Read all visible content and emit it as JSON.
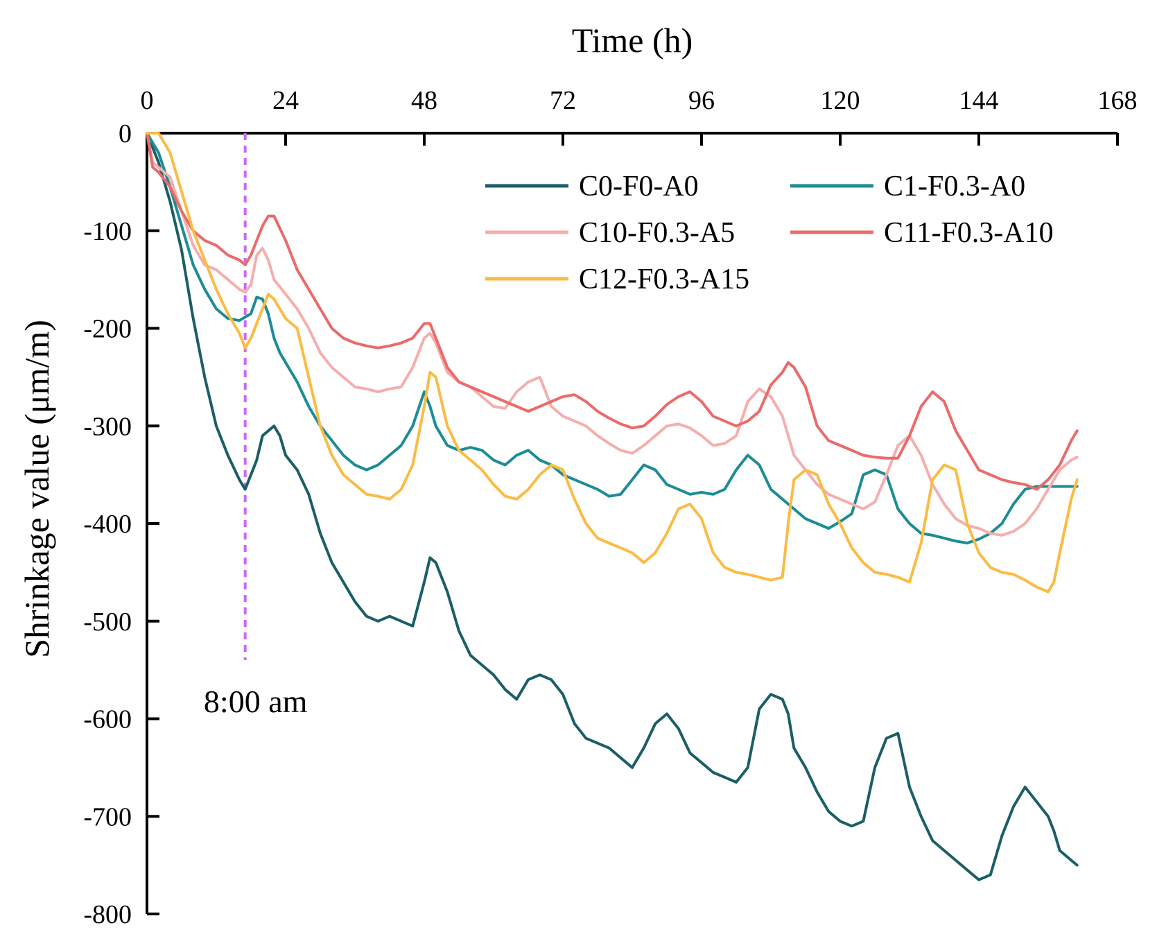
{
  "chart_data": {
    "type": "line",
    "title": "",
    "xlabel": "Time (h)",
    "ylabel": "Shrinkage value (μm/m)",
    "xlim": [
      0,
      168
    ],
    "ylim": [
      -800,
      0
    ],
    "xticks": [
      0,
      24,
      48,
      72,
      96,
      120,
      144,
      168
    ],
    "yticks": [
      0,
      -100,
      -200,
      -300,
      -400,
      -500,
      -600,
      -700,
      -800
    ],
    "xticklabels": [
      "0",
      "24",
      "48",
      "72",
      "96",
      "120",
      "144",
      "168"
    ],
    "yticklabels": [
      "0",
      "-100",
      "-200",
      "-300",
      "-400",
      "-500",
      "-600",
      "-700",
      "-800"
    ],
    "x_axis_position": "top",
    "legend_position": "top-right",
    "annotation": {
      "x": 17,
      "y_from": 0,
      "y_to": -540,
      "label": "8:00 am",
      "color": "#cc66ff"
    },
    "series": [
      {
        "name": "C0-F0-A0",
        "color": "#1b5e66",
        "x": [
          0,
          2,
          4,
          6,
          8,
          10,
          12,
          14,
          16,
          17,
          19,
          20,
          21,
          22,
          23,
          24,
          26,
          28,
          30,
          32,
          34,
          36,
          38,
          40,
          42,
          44,
          46,
          48,
          49,
          50,
          52,
          54,
          56,
          58,
          60,
          62,
          64,
          66,
          68,
          70,
          72,
          74,
          76,
          78,
          80,
          82,
          84,
          86,
          88,
          90,
          92,
          94,
          96,
          98,
          100,
          102,
          104,
          106,
          108,
          110,
          111,
          112,
          114,
          116,
          118,
          120,
          122,
          124,
          126,
          128,
          130,
          132,
          134,
          136,
          138,
          140,
          142,
          144,
          146,
          148,
          150,
          152,
          154,
          156,
          157,
          158,
          160,
          161
        ],
        "y": [
          0,
          -30,
          -70,
          -120,
          -190,
          -250,
          -300,
          -330,
          -355,
          -365,
          -335,
          -310,
          -305,
          -300,
          -310,
          -330,
          -345,
          -370,
          -410,
          -440,
          -460,
          -480,
          -495,
          -500,
          -495,
          -500,
          -505,
          -460,
          -435,
          -440,
          -470,
          -510,
          -535,
          -545,
          -555,
          -570,
          -580,
          -560,
          -555,
          -560,
          -575,
          -605,
          -620,
          -625,
          -630,
          -640,
          -650,
          -630,
          -605,
          -595,
          -610,
          -635,
          -645,
          -655,
          -660,
          -665,
          -650,
          -590,
          -575,
          -580,
          -595,
          -630,
          -650,
          -675,
          -695,
          -705,
          -710,
          -705,
          -650,
          -620,
          -615,
          -670,
          -700,
          -725,
          -735,
          -745,
          -755,
          -765,
          -760,
          -720,
          -690,
          -670,
          -685,
          -700,
          -715,
          -735,
          -745,
          -750
        ]
      },
      {
        "name": "C1-F0.3-A0",
        "color": "#1c8c96",
        "x": [
          0,
          2,
          4,
          6,
          8,
          10,
          12,
          14,
          16,
          18,
          19,
          20,
          21,
          22,
          23,
          24,
          26,
          28,
          30,
          32,
          34,
          36,
          38,
          40,
          42,
          44,
          46,
          48,
          49,
          50,
          52,
          54,
          56,
          58,
          60,
          62,
          64,
          66,
          68,
          70,
          72,
          74,
          76,
          78,
          80,
          82,
          84,
          86,
          88,
          90,
          92,
          94,
          96,
          98,
          100,
          102,
          104,
          106,
          108,
          110,
          111,
          112,
          114,
          116,
          118,
          120,
          122,
          124,
          126,
          128,
          130,
          132,
          134,
          136,
          138,
          140,
          142,
          144,
          146,
          148,
          150,
          152,
          154,
          156,
          158,
          160,
          161
        ],
        "y": [
          0,
          -20,
          -55,
          -95,
          -135,
          -160,
          -180,
          -190,
          -192,
          -185,
          -168,
          -170,
          -185,
          -210,
          -225,
          -235,
          -255,
          -280,
          -300,
          -315,
          -330,
          -340,
          -345,
          -340,
          -330,
          -320,
          -300,
          -265,
          -280,
          -300,
          -320,
          -325,
          -322,
          -325,
          -335,
          -340,
          -330,
          -325,
          -335,
          -340,
          -350,
          -355,
          -360,
          -365,
          -372,
          -370,
          -355,
          -340,
          -345,
          -360,
          -365,
          -370,
          -368,
          -370,
          -365,
          -345,
          -330,
          -340,
          -365,
          -375,
          -380,
          -385,
          -395,
          -400,
          -405,
          -398,
          -390,
          -350,
          -345,
          -350,
          -385,
          -400,
          -410,
          -412,
          -415,
          -418,
          -420,
          -416,
          -410,
          -400,
          -380,
          -365,
          -362,
          -362,
          -362,
          -362,
          -362
        ]
      },
      {
        "name": "C10-F0.3-A5",
        "color": "#f5aeae",
        "x": [
          0,
          1,
          2,
          4,
          6,
          8,
          10,
          12,
          14,
          16,
          17,
          18,
          19,
          20,
          21,
          22,
          24,
          26,
          28,
          30,
          32,
          34,
          36,
          38,
          40,
          42,
          44,
          46,
          48,
          49,
          50,
          52,
          54,
          56,
          58,
          60,
          62,
          64,
          66,
          68,
          70,
          72,
          74,
          76,
          78,
          80,
          82,
          84,
          86,
          88,
          90,
          92,
          94,
          96,
          98,
          100,
          102,
          104,
          106,
          108,
          110,
          111,
          112,
          114,
          116,
          118,
          120,
          122,
          124,
          126,
          128,
          130,
          132,
          134,
          136,
          138,
          140,
          142,
          144,
          146,
          148,
          150,
          152,
          154,
          156,
          158,
          160,
          161
        ],
        "y": [
          0,
          -30,
          -35,
          -45,
          -80,
          -115,
          -135,
          -140,
          -150,
          -160,
          -163,
          -155,
          -125,
          -118,
          -130,
          -150,
          -165,
          -180,
          -200,
          -225,
          -240,
          -250,
          -260,
          -262,
          -265,
          -262,
          -260,
          -240,
          -210,
          -205,
          -215,
          -245,
          -255,
          -260,
          -270,
          -280,
          -282,
          -265,
          -255,
          -250,
          -280,
          -290,
          -295,
          -300,
          -310,
          -318,
          -325,
          -328,
          -320,
          -310,
          -300,
          -298,
          -302,
          -310,
          -320,
          -318,
          -310,
          -275,
          -262,
          -270,
          -290,
          -310,
          -330,
          -345,
          -360,
          -370,
          -375,
          -380,
          -385,
          -378,
          -350,
          -320,
          -310,
          -330,
          -360,
          -380,
          -395,
          -402,
          -405,
          -410,
          -412,
          -408,
          -400,
          -385,
          -365,
          -345,
          -335,
          -332
        ]
      },
      {
        "name": "C11-F0.3-A10",
        "color": "#eb6a6a",
        "x": [
          0,
          1,
          2,
          4,
          6,
          8,
          10,
          12,
          14,
          16,
          17,
          18,
          19,
          20,
          21,
          22,
          24,
          26,
          28,
          30,
          32,
          34,
          36,
          38,
          40,
          42,
          44,
          46,
          48,
          49,
          50,
          52,
          54,
          56,
          58,
          60,
          62,
          64,
          66,
          68,
          70,
          72,
          74,
          76,
          78,
          80,
          82,
          84,
          86,
          88,
          90,
          92,
          94,
          96,
          98,
          100,
          102,
          104,
          106,
          108,
          110,
          111,
          112,
          114,
          116,
          118,
          120,
          122,
          124,
          126,
          128,
          130,
          132,
          134,
          136,
          138,
          140,
          142,
          144,
          146,
          148,
          150,
          152,
          154,
          156,
          158,
          160,
          161
        ],
        "y": [
          0,
          -35,
          -40,
          -55,
          -80,
          -100,
          -110,
          -115,
          -125,
          -130,
          -135,
          -125,
          -110,
          -95,
          -85,
          -85,
          -110,
          -140,
          -160,
          -180,
          -200,
          -210,
          -215,
          -218,
          -220,
          -218,
          -215,
          -210,
          -195,
          -195,
          -210,
          -240,
          -255,
          -260,
          -265,
          -270,
          -275,
          -280,
          -285,
          -280,
          -275,
          -270,
          -268,
          -275,
          -285,
          -292,
          -298,
          -302,
          -300,
          -290,
          -278,
          -270,
          -265,
          -275,
          -290,
          -295,
          -300,
          -295,
          -285,
          -258,
          -245,
          -235,
          -240,
          -260,
          -300,
          -315,
          -320,
          -325,
          -330,
          -332,
          -333,
          -333,
          -310,
          -280,
          -265,
          -275,
          -305,
          -325,
          -345,
          -350,
          -355,
          -358,
          -360,
          -365,
          -355,
          -340,
          -315,
          -305
        ]
      },
      {
        "name": "C12-F0.3-A15",
        "color": "#fbbb44",
        "x": [
          0,
          2,
          4,
          6,
          8,
          10,
          12,
          14,
          16,
          17,
          18,
          19,
          20,
          21,
          22,
          24,
          26,
          28,
          30,
          32,
          34,
          36,
          38,
          40,
          42,
          44,
          46,
          48,
          49,
          50,
          52,
          54,
          56,
          58,
          60,
          62,
          64,
          66,
          68,
          70,
          72,
          74,
          76,
          78,
          80,
          82,
          84,
          86,
          88,
          90,
          92,
          94,
          96,
          98,
          100,
          102,
          104,
          106,
          108,
          110,
          111,
          112,
          114,
          116,
          118,
          120,
          122,
          124,
          126,
          128,
          130,
          132,
          134,
          136,
          138,
          140,
          142,
          144,
          146,
          148,
          150,
          152,
          154,
          156,
          157,
          158,
          160,
          161
        ],
        "y": [
          0,
          0,
          -20,
          -60,
          -100,
          -130,
          -160,
          -185,
          -205,
          -220,
          -210,
          -195,
          -180,
          -165,
          -170,
          -190,
          -200,
          -250,
          -300,
          -330,
          -350,
          -360,
          -370,
          -372,
          -375,
          -365,
          -340,
          -280,
          -245,
          -250,
          -300,
          -325,
          -335,
          -345,
          -360,
          -372,
          -375,
          -365,
          -350,
          -340,
          -345,
          -375,
          -400,
          -415,
          -420,
          -425,
          -430,
          -440,
          -430,
          -410,
          -385,
          -380,
          -395,
          -430,
          -445,
          -450,
          -452,
          -455,
          -458,
          -455,
          -400,
          -355,
          -345,
          -350,
          -380,
          -400,
          -425,
          -440,
          -450,
          -452,
          -455,
          -460,
          -420,
          -355,
          -340,
          -345,
          -400,
          -430,
          -445,
          -450,
          -452,
          -458,
          -465,
          -470,
          -460,
          -430,
          -375,
          -355
        ]
      }
    ]
  }
}
